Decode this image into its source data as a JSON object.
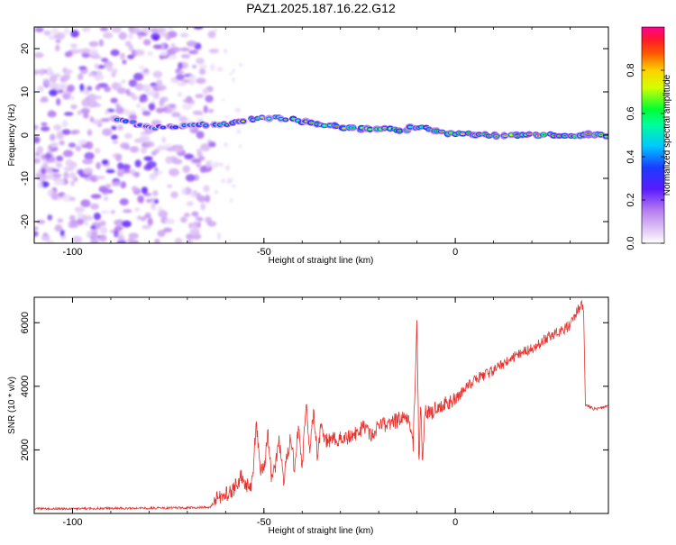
{
  "title": "PAZ1.2025.187.16.22.G12",
  "colors": {
    "snr_line": "#e8302c",
    "frame": "#000000",
    "colormap": [
      "#ffffff",
      "#e6d2f7",
      "#8a2be2",
      "#1a1aff",
      "#00c8ff",
      "#00ff66",
      "#d4ff00",
      "#ffd000",
      "#ff2a2a",
      "#ff0090"
    ]
  },
  "chart_data": [
    {
      "type": "heatmap",
      "title": "PAZ1.2025.187.16.22.G12",
      "xlabel": "Height of straight line (km)",
      "ylabel": "Frequency (Hz)",
      "xlim": [
        -110,
        40
      ],
      "ylim": [
        -25,
        25
      ],
      "x_ticks": [
        -100,
        -50,
        0
      ],
      "y_ticks": [
        -20,
        -10,
        0,
        10,
        20
      ],
      "colorbar": {
        "label": "Normalized spectral amplitude",
        "range": [
          0,
          1
        ],
        "ticks": [
          "0.0",
          "0.2",
          "0.4",
          "0.6",
          "0.8"
        ]
      },
      "noise_region_x": [
        -110,
        -63
      ],
      "ridge": [
        {
          "x": -89,
          "y": 4,
          "amp": 0.45
        },
        {
          "x": -85,
          "y": 3,
          "amp": 0.5
        },
        {
          "x": -82,
          "y": 2,
          "amp": 0.45
        },
        {
          "x": -79,
          "y": 1.5,
          "amp": 0.4
        },
        {
          "x": -75,
          "y": 2,
          "amp": 0.45
        },
        {
          "x": -70,
          "y": 2,
          "amp": 0.5
        },
        {
          "x": -65,
          "y": 2.5,
          "amp": 0.55
        },
        {
          "x": -60,
          "y": 2.5,
          "amp": 0.6
        },
        {
          "x": -55,
          "y": 3.5,
          "amp": 0.65
        },
        {
          "x": -50,
          "y": 4,
          "amp": 0.7
        },
        {
          "x": -45,
          "y": 4,
          "amp": 0.75
        },
        {
          "x": -40,
          "y": 3,
          "amp": 0.75
        },
        {
          "x": -35,
          "y": 2.5,
          "amp": 0.8
        },
        {
          "x": -30,
          "y": 2,
          "amp": 0.85
        },
        {
          "x": -25,
          "y": 1.5,
          "amp": 0.85
        },
        {
          "x": -20,
          "y": 1.5,
          "amp": 0.85
        },
        {
          "x": -15,
          "y": 1,
          "amp": 0.85
        },
        {
          "x": -10,
          "y": 2,
          "amp": 0.6
        },
        {
          "x": -5,
          "y": 1,
          "amp": 0.85
        },
        {
          "x": 0,
          "y": 0.2,
          "amp": 0.9
        },
        {
          "x": 10,
          "y": 0,
          "amp": 0.9
        },
        {
          "x": 20,
          "y": 0,
          "amp": 0.9
        },
        {
          "x": 30,
          "y": 0,
          "amp": 0.9
        },
        {
          "x": 40,
          "y": 0,
          "amp": 0.9
        }
      ]
    },
    {
      "type": "line",
      "xlabel": "Height of straight line (km)",
      "ylabel": "SNR (10 * v/v)",
      "xlim": [
        -110,
        40
      ],
      "ylim": [
        0,
        6800
      ],
      "x_ticks": [
        -100,
        -50,
        0
      ],
      "y_ticks": [
        2000,
        4000,
        6000
      ],
      "series": [
        {
          "x": [
            -110,
            -100,
            -90,
            -80,
            -70,
            -64,
            -62,
            -60,
            -58,
            -56,
            -54,
            -53,
            -52,
            -51,
            -50,
            -49,
            -48,
            -47,
            -46,
            -45,
            -44,
            -43,
            -42,
            -41,
            -40,
            -39,
            -38,
            -37,
            -36,
            -35,
            -34,
            -32,
            -30,
            -28,
            -26,
            -24,
            -22,
            -20,
            -18,
            -16,
            -14,
            -12,
            -11,
            -10,
            -9.5,
            -9,
            -8.5,
            -8,
            -7,
            -6,
            -5,
            -4,
            -2,
            0,
            5,
            10,
            15,
            20,
            25,
            30,
            32,
            33,
            33.5,
            34,
            36,
            38,
            40
          ],
          "values": [
            150,
            150,
            160,
            170,
            180,
            200,
            500,
            600,
            700,
            1200,
            800,
            1000,
            2900,
            1300,
            1400,
            2500,
            1100,
            1500,
            2400,
            1000,
            1700,
            2500,
            1300,
            2700,
            1400,
            3500,
            2000,
            3200,
            1800,
            2800,
            2300,
            2300,
            2400,
            2400,
            2500,
            2700,
            2500,
            2700,
            2800,
            2900,
            3000,
            3000,
            2200,
            6000,
            1600,
            3500,
            1500,
            3300,
            3200,
            3100,
            3400,
            3400,
            3500,
            3600,
            4200,
            4500,
            4900,
            5200,
            5600,
            5900,
            6400,
            6600,
            6500,
            3400,
            3300,
            3300,
            3400
          ]
        }
      ]
    }
  ]
}
